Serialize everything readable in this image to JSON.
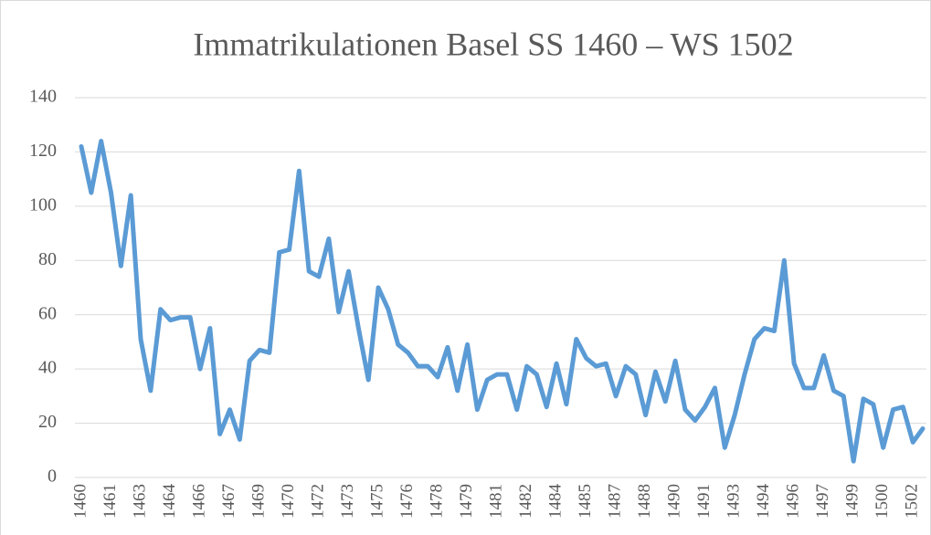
{
  "chart_data": {
    "type": "line",
    "title": "Immatrikulationen  Basel SS 1460 – WS 1502",
    "categories": [
      "1460",
      null,
      null,
      "1461",
      null,
      null,
      "1463",
      null,
      null,
      "1464",
      null,
      null,
      "1466",
      null,
      null,
      "1467",
      null,
      null,
      "1469",
      null,
      null,
      "1470",
      null,
      null,
      "1472",
      null,
      null,
      "1473",
      null,
      null,
      "1475",
      null,
      null,
      "1476",
      null,
      null,
      "1478",
      null,
      null,
      "1479",
      null,
      null,
      "1481",
      null,
      null,
      "1482",
      null,
      null,
      "1484",
      null,
      null,
      "1485",
      null,
      null,
      "1487",
      null,
      null,
      "1488",
      null,
      null,
      "1490",
      null,
      null,
      "1491",
      null,
      null,
      "1493",
      null,
      null,
      "1494",
      null,
      null,
      "1496",
      null,
      null,
      "1497",
      null,
      null,
      "1499",
      null,
      null,
      "1500",
      null,
      null,
      "1502",
      null
    ],
    "series": [
      {
        "name": "Immatrikulationen",
        "color": "#5b9bd5",
        "values": [
          122,
          105,
          124,
          105,
          78,
          104,
          51,
          32,
          62,
          58,
          59,
          59,
          40,
          55,
          16,
          25,
          14,
          43,
          47,
          46,
          83,
          84,
          113,
          76,
          74,
          88,
          61,
          76,
          55,
          36,
          70,
          62,
          49,
          46,
          41,
          41,
          37,
          48,
          32,
          49,
          25,
          36,
          38,
          38,
          25,
          41,
          38,
          26,
          42,
          27,
          51,
          44,
          41,
          42,
          30,
          41,
          38,
          23,
          39,
          28,
          43,
          25,
          21,
          26,
          33,
          11,
          23,
          38,
          51,
          55,
          54,
          80,
          42,
          33,
          33,
          45,
          32,
          30,
          6,
          29,
          27,
          11,
          25,
          26,
          13,
          18
        ]
      }
    ],
    "ylim": [
      0,
      140
    ],
    "yticks": [
      0,
      20,
      40,
      60,
      80,
      100,
      120,
      140
    ],
    "grid": true
  }
}
